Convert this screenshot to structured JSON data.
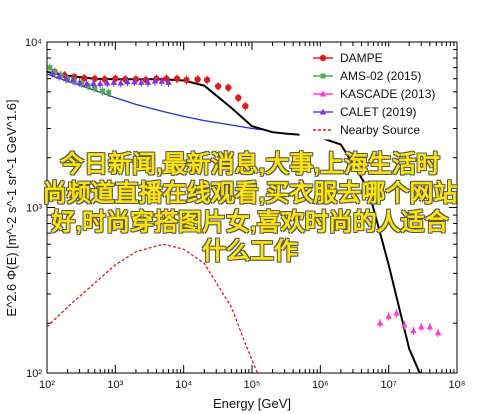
{
  "chart_data": {
    "type": "scatter",
    "xlabel": "Energy [GeV]",
    "ylabel": "E^2.6 Φ(E) [m^-2 s^-1 sr^-1 GeV^1.6]",
    "x_scale": "log",
    "y_scale": "log",
    "xlim": [
      100,
      100000000
    ],
    "ylim": [
      100,
      10000
    ],
    "x_ticks": [
      "10²",
      "10³",
      "10⁴",
      "10⁵",
      "10⁶",
      "10⁷",
      "10⁸"
    ],
    "y_ticks": [
      "10²",
      "10³",
      "10⁴"
    ],
    "legend_position": "top-right",
    "series": [
      {
        "name": "DAMPE",
        "color": "#e31a1c",
        "marker": "circle",
        "x": [
          130,
          180,
          250,
          350,
          500,
          700,
          1000,
          1400,
          2000,
          2800,
          4000,
          5600,
          8000,
          11000,
          16000,
          22000,
          32000,
          45000,
          63000,
          80000
        ],
        "y": [
          6600,
          6300,
          6150,
          6050,
          6000,
          5950,
          6000,
          5950,
          5950,
          5900,
          6000,
          6000,
          6000,
          5900,
          5950,
          5900,
          5400,
          5300,
          4600,
          4100
        ]
      },
      {
        "name": "AMS-02 (2015)",
        "color": "#4daf4a",
        "marker": "square",
        "x": [
          110,
          130,
          160,
          200,
          250,
          320,
          400,
          500,
          650,
          800
        ],
        "y": [
          7000,
          6600,
          6300,
          6000,
          5800,
          5600,
          5450,
          5250,
          5050,
          4950
        ]
      },
      {
        "name": "KASCADE (2013)",
        "color": "#ff3ad6",
        "marker": "triangle",
        "x": [
          7500000,
          10000000,
          13000000,
          17000000,
          23000000,
          30000000,
          40000000,
          53000000
        ],
        "y": [
          200,
          220,
          230,
          195,
          180,
          190,
          190,
          175
        ]
      },
      {
        "name": "CALET (2019)",
        "color": "#7b35e8",
        "marker": "triangle",
        "x": [
          120,
          150,
          190,
          240,
          300,
          380,
          480,
          600,
          760,
          950,
          1200,
          1500,
          1900,
          2400,
          3000,
          3800,
          4800,
          6000
        ],
        "y": [
          6500,
          6200,
          6000,
          5900,
          5700,
          5600,
          5600,
          5600,
          5650,
          5700,
          5650,
          5750,
          5750,
          5700,
          5700,
          5800,
          5800,
          5700
        ]
      },
      {
        "name": "Nearby Source",
        "color": "#e31a1c",
        "style": "dashed",
        "x": [
          100,
          200,
          500,
          1000,
          2000,
          5000,
          10000,
          20000,
          50000,
          80000,
          120000
        ],
        "y": [
          190,
          250,
          350,
          450,
          540,
          600,
          560,
          460,
          250,
          150,
          100
        ]
      },
      {
        "color": "#1f2fd0",
        "style": "solid",
        "x": [
          100,
          200,
          500,
          1000,
          2000,
          5000,
          10000,
          20000,
          50000,
          100000,
          140000
        ],
        "y": [
          6400,
          5800,
          5100,
          4600,
          4200,
          3800,
          3550,
          3350,
          3150,
          3000,
          2950
        ]
      },
      {
        "color": "#000000",
        "style": "solid",
        "x": [
          100,
          200,
          500,
          1000,
          2000,
          5000,
          10000,
          20000,
          50000,
          100000,
          150000,
          200000,
          300000,
          500000,
          1000000,
          2000000,
          5000000,
          10000000,
          20000000,
          30000000
        ],
        "y": [
          6600,
          6250,
          6000,
          5950,
          5950,
          5950,
          5850,
          5450,
          4000,
          3100,
          2950,
          2850,
          2800,
          2750,
          2650,
          2400,
          1300,
          450,
          140,
          95
        ]
      }
    ]
  },
  "overlay_text": [
    "今日新闻,最新消息,大事,上海生活时",
    "尚频道直播在线观看,买衣服去哪个网站",
    "好,时尚穿搭图片女,喜欢时尚的人适合",
    "什么工作"
  ]
}
